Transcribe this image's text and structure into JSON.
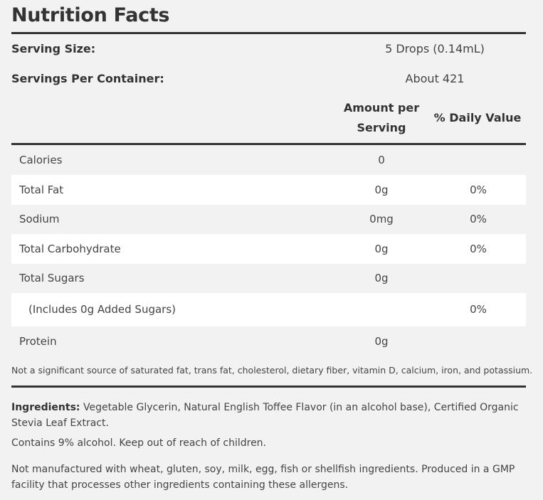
{
  "title": "Nutrition Facts",
  "serving_size": {
    "label": "Serving Size:",
    "value": "5 Drops (0.14mL)"
  },
  "servings_per_container": {
    "label": "Servings Per Container:",
    "value": "About 421"
  },
  "columns": {
    "amount_line1": "Amount per",
    "amount_line2": "Serving",
    "daily_value": "% Daily Value"
  },
  "nutrients": [
    {
      "name": "Calories",
      "amount": "0",
      "dv": ""
    },
    {
      "name": "Total Fat",
      "amount": "0g",
      "dv": "0%"
    },
    {
      "name": "Sodium",
      "amount": "0mg",
      "dv": "0%"
    },
    {
      "name": "Total Carbohydrate",
      "amount": "0g",
      "dv": "0%"
    },
    {
      "name": "Total Sugars",
      "amount": "0g",
      "dv": ""
    },
    {
      "name": "(Includes 0g Added Sugars)",
      "amount": "",
      "dv": "0%"
    },
    {
      "name": "Protein",
      "amount": "0g",
      "dv": ""
    }
  ],
  "footnote": "Not a significant source of saturated fat, trans fat, cholesterol, dietary fiber, vitamin D, calcium, iron, and potassium.",
  "ingredients": {
    "label": "Ingredients:",
    "text": " Vegetable Glycerin, Natural English Toffee Flavor (in an alcohol base), Certified Organic Stevia Leaf Extract."
  },
  "alcohol_note": "Contains 9% alcohol. Keep out of reach of children.",
  "allergen_note": "Not manufactured with wheat, gluten, soy, milk, egg, fish or shellfish ingredients. Produced in a GMP facility that processes other ingredients containing these allergens.",
  "colors": {
    "background": "#f2f2f2",
    "alt_row": "#ffffff",
    "rule": "#333333",
    "text": "#444444"
  }
}
